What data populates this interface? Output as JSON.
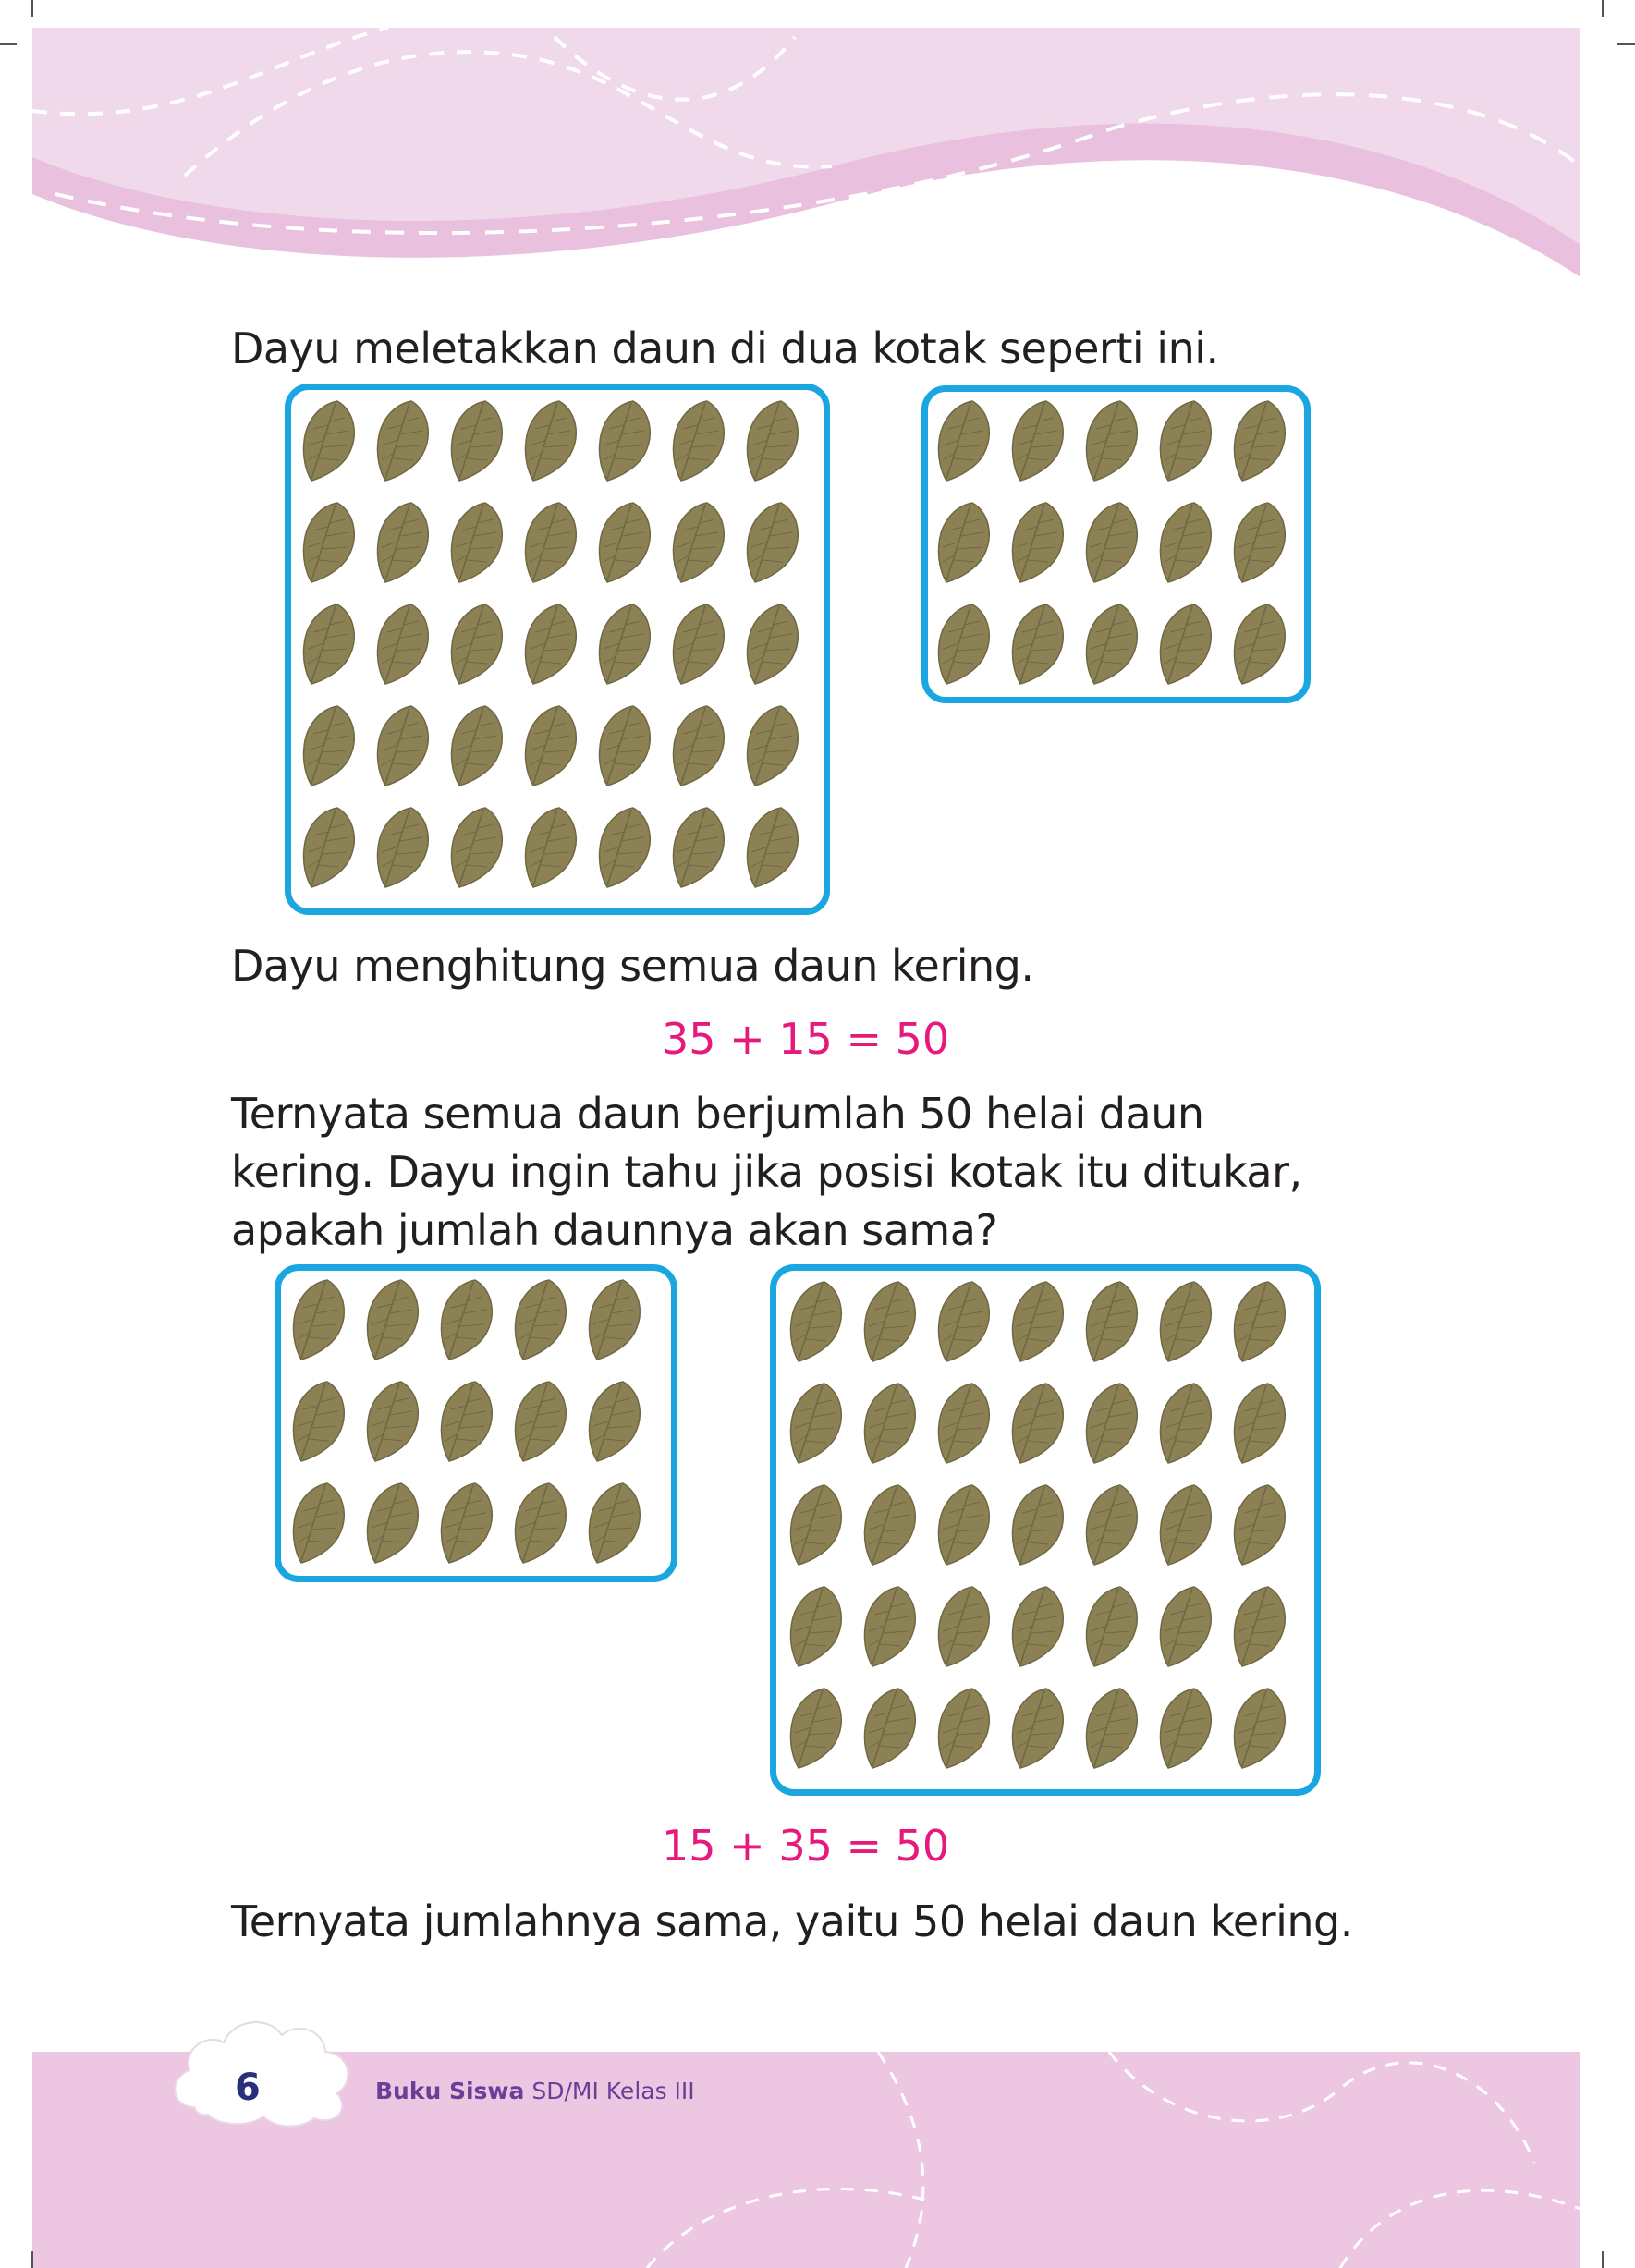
{
  "paragraphs": {
    "intro": "Dayu meletakkan daun di dua kotak seperti ini.",
    "count": "Dayu menghitung semua daun kering.",
    "question_line1": "Ternyata semua daun berjumlah 50 helai daun",
    "question_line2": "kering. Dayu ingin tahu jika posisi kotak itu ditukar,",
    "question_line3": "apakah jumlah daunnya akan sama?",
    "conclusion": "Ternyata jumlahnya sama, yaitu 50 helai daun kering."
  },
  "equations": {
    "first": "35 + 15 = 50",
    "second": "15 + 35 = 50"
  },
  "boxes": {
    "first_row": [
      {
        "leaf_count": 35,
        "rows": 5,
        "cols": 7
      },
      {
        "leaf_count": 15,
        "rows": 3,
        "cols": 5
      }
    ],
    "second_row": [
      {
        "leaf_count": 15,
        "rows": 3,
        "cols": 5
      },
      {
        "leaf_count": 35,
        "rows": 5,
        "cols": 7
      }
    ]
  },
  "footer": {
    "page_number": "6",
    "book_title_bold": "Buku Siswa",
    "book_title_rest": " SD/MI Kelas III"
  },
  "colors": {
    "header_pink": "#edc7e1",
    "box_border": "#1aa6e0",
    "leaf_fill": "#8b8155",
    "equation_text": "#e6197c"
  },
  "icons": [
    "leaf-icon",
    "cloud-icon"
  ]
}
